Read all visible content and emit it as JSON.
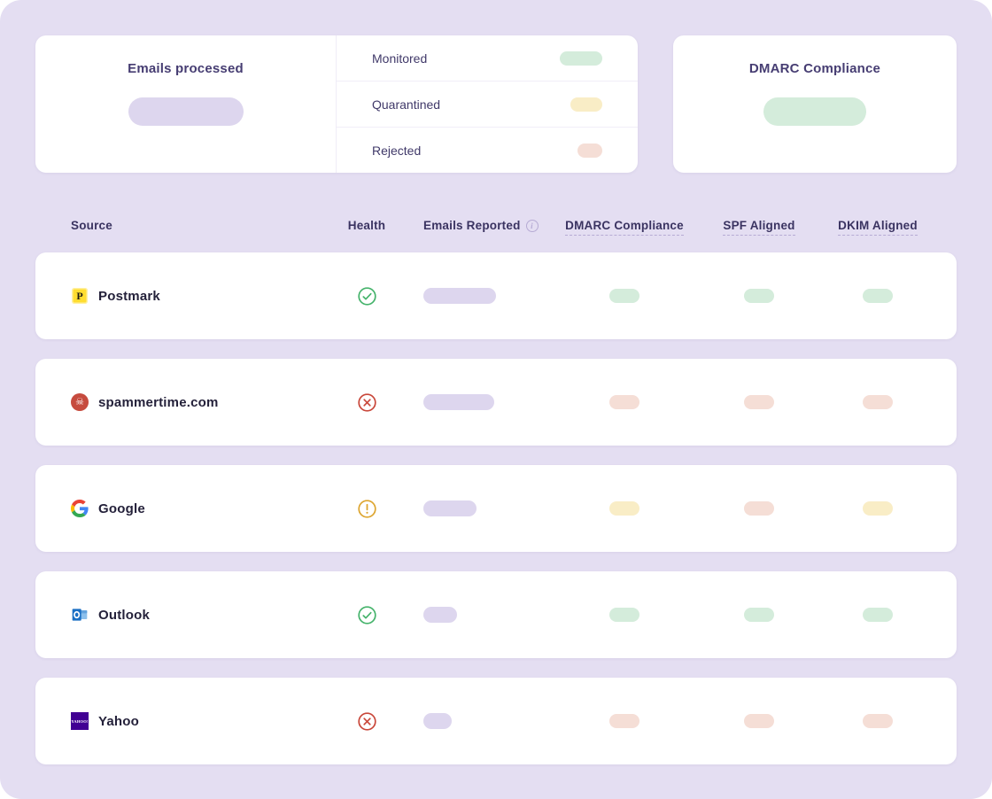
{
  "colors": {
    "background": "#e4def2",
    "ok": "#d4ecdb",
    "warn": "#f9edc6",
    "fail": "#f5ded6",
    "neutral": "#ddd6ee",
    "health_ok": "#45b36b",
    "health_warn": "#dda52f",
    "health_fail": "#c9473a"
  },
  "summary": {
    "emails_processed": {
      "title": "Emails processed",
      "value_pill_width": 130
    },
    "stats": [
      {
        "label": "Monitored",
        "status": "ok",
        "pill_width": 48
      },
      {
        "label": "Quarantined",
        "status": "warn",
        "pill_width": 36
      },
      {
        "label": "Rejected",
        "status": "fail",
        "pill_width": 28
      }
    ],
    "dmarc_compliance": {
      "title": "DMARC Compliance",
      "value_pill_width": 116
    }
  },
  "table": {
    "headers": {
      "source": "Source",
      "health": "Health",
      "emails_reported": "Emails Reported",
      "dmarc_compliance": "DMARC Compliance",
      "spf_aligned": "SPF Aligned",
      "dkim_aligned": "DKIM Aligned"
    },
    "rows": [
      {
        "source": "Postmark",
        "icon": "postmark-icon",
        "health": "ok",
        "emails_pill_width": 82,
        "dmarc": "ok",
        "spf": "ok",
        "dkim": "ok"
      },
      {
        "source": "spammertime.com",
        "icon": "spammer-icon",
        "health": "fail",
        "emails_pill_width": 80,
        "dmarc": "fail",
        "spf": "fail",
        "dkim": "fail"
      },
      {
        "source": "Google",
        "icon": "google-icon",
        "health": "warn",
        "emails_pill_width": 60,
        "dmarc": "warn",
        "spf": "fail",
        "dkim": "warn"
      },
      {
        "source": "Outlook",
        "icon": "outlook-icon",
        "health": "ok",
        "emails_pill_width": 38,
        "dmarc": "ok",
        "spf": "ok",
        "dkim": "ok"
      },
      {
        "source": "Yahoo",
        "icon": "yahoo-icon",
        "health": "fail",
        "emails_pill_width": 32,
        "dmarc": "fail",
        "spf": "fail",
        "dkim": "fail"
      }
    ]
  }
}
